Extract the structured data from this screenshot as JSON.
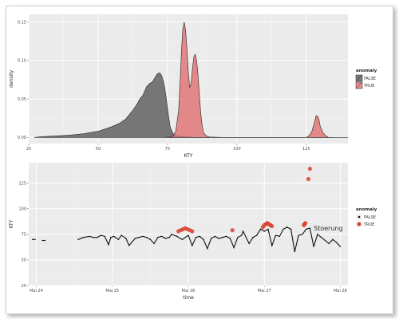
{
  "chart_data": [
    {
      "type": "area",
      "xlabel": "KTY",
      "ylabel": "density",
      "xlim": [
        25,
        140
      ],
      "ylim": [
        -0.008,
        0.16
      ],
      "x_ticks": [
        25,
        50,
        75,
        100,
        125
      ],
      "x_tick_labels": [
        "25",
        "50",
        "75",
        "100",
        "125"
      ],
      "y_ticks": [
        0.0,
        0.05,
        0.1,
        0.15
      ],
      "y_tick_labels": [
        "0.00",
        "0.05",
        "0.10",
        "0.15"
      ],
      "grid": true,
      "legend": {
        "title": "anomaly",
        "position": "right",
        "entries": [
          "FALSE",
          "TRUE"
        ]
      },
      "series": [
        {
          "name": "FALSE",
          "fill": "#555555",
          "x": [
            27,
            30,
            35,
            40,
            45,
            50,
            55,
            58,
            60,
            62,
            64,
            65,
            66,
            67,
            67.5,
            68,
            68.5,
            69,
            69.5,
            70,
            70.5,
            71,
            71.5,
            72,
            72.5,
            73,
            73.5,
            74,
            74.5,
            75,
            75.5,
            76,
            77,
            78,
            80,
            85,
            140
          ],
          "y": [
            0,
            0.001,
            0.002,
            0.003,
            0.005,
            0.008,
            0.014,
            0.019,
            0.024,
            0.033,
            0.043,
            0.05,
            0.054,
            0.062,
            0.066,
            0.068,
            0.07,
            0.071,
            0.072,
            0.075,
            0.078,
            0.081,
            0.083,
            0.084,
            0.083,
            0.079,
            0.073,
            0.064,
            0.052,
            0.038,
            0.024,
            0.013,
            0.005,
            0.002,
            0.001,
            0,
            0
          ]
        },
        {
          "name": "TRUE",
          "fill": "#e06b6b",
          "x": [
            74,
            76,
            77,
            78,
            79,
            79.5,
            80,
            80.5,
            81,
            81.5,
            82,
            82.5,
            83,
            83.5,
            84,
            84.5,
            85,
            85.5,
            86,
            86.5,
            87,
            87.5,
            88,
            89,
            90,
            95,
            100,
            110,
            120,
            125,
            126,
            127,
            128,
            128.5,
            129,
            129.5,
            130,
            131,
            132,
            133,
            135
          ],
          "y": [
            0,
            0.0005,
            0.002,
            0.008,
            0.035,
            0.07,
            0.11,
            0.14,
            0.15,
            0.14,
            0.115,
            0.085,
            0.065,
            0.07,
            0.09,
            0.105,
            0.108,
            0.1,
            0.08,
            0.055,
            0.03,
            0.015,
            0.006,
            0.002,
            0.0005,
            0,
            0,
            0,
            0,
            0,
            0.002,
            0.008,
            0.02,
            0.028,
            0.028,
            0.024,
            0.015,
            0.006,
            0.002,
            0,
            0
          ]
        }
      ]
    },
    {
      "type": "scatter",
      "xlabel": "time",
      "ylabel": "KTY",
      "xlim": [
        -0.1,
        4.1
      ],
      "ylim": [
        25,
        145
      ],
      "x_ticks": [
        0,
        1,
        2,
        3,
        4
      ],
      "x_tick_labels": [
        "Mai 24",
        "Mai 25",
        "Mai 26",
        "Mai 27",
        "Mai 28"
      ],
      "y_ticks": [
        25,
        50,
        75,
        100,
        125
      ],
      "y_tick_labels": [
        "25",
        "50",
        "75",
        "100",
        "125"
      ],
      "grid": true,
      "legend": {
        "title": "anomaly",
        "position": "right",
        "entries": [
          "FALSE",
          "TRUE"
        ]
      },
      "annotation": {
        "text": "Stoerung",
        "x": 3.65,
        "y": 81
      },
      "series": [
        {
          "name": "FALSE",
          "color": "#111111",
          "x": [
            -0.05,
            0.08,
            0.55,
            0.62,
            0.7,
            0.75,
            0.8,
            0.85,
            0.9,
            0.95,
            0.98,
            1.02,
            1.08,
            1.12,
            1.18,
            1.22,
            1.3,
            1.35,
            1.4,
            1.45,
            1.5,
            1.55,
            1.6,
            1.65,
            1.7,
            1.75,
            1.78,
            1.85,
            1.92,
            2.0,
            2.05,
            2.1,
            2.15,
            2.2,
            2.25,
            2.3,
            2.35,
            2.4,
            2.45,
            2.5,
            2.55,
            2.6,
            2.65,
            2.7,
            2.72,
            2.8,
            2.85,
            2.9,
            2.95,
            3.0,
            3.05,
            3.1,
            3.15,
            3.2,
            3.25,
            3.3,
            3.35,
            3.4,
            3.45,
            3.5,
            3.55,
            3.6,
            3.65,
            3.7,
            3.75,
            3.8,
            3.85,
            3.9,
            3.95,
            4.0
          ],
          "y": [
            70,
            69,
            70,
            72,
            73,
            72,
            72,
            74,
            73,
            65,
            72,
            73,
            70,
            74,
            71,
            64,
            71,
            72,
            73,
            72,
            70,
            66,
            72,
            73,
            71,
            72,
            75,
            73,
            70,
            74,
            64,
            72,
            73,
            70,
            61,
            71,
            73,
            71,
            72,
            73,
            71,
            62,
            72,
            74,
            78,
            66,
            72,
            74,
            80,
            78,
            80,
            64,
            74,
            73,
            80,
            82,
            80,
            58,
            74,
            75,
            80,
            81,
            63,
            75,
            72,
            69,
            66,
            70,
            67,
            63
          ]
        },
        {
          "name": "TRUE",
          "color": "#d9412f",
          "x": [
            1.87,
            1.9,
            1.93,
            1.96,
            1.99,
            2.02,
            2.05,
            2.58,
            2.98,
            3.0,
            3.02,
            3.04,
            3.06,
            3.08,
            3.1,
            3.52,
            3.53,
            3.54,
            3.58,
            3.6
          ],
          "y": [
            78,
            79,
            80,
            81,
            80,
            79,
            78,
            79,
            82,
            84,
            85,
            86,
            85,
            84,
            83,
            84,
            85,
            86,
            129,
            139
          ]
        }
      ]
    }
  ]
}
